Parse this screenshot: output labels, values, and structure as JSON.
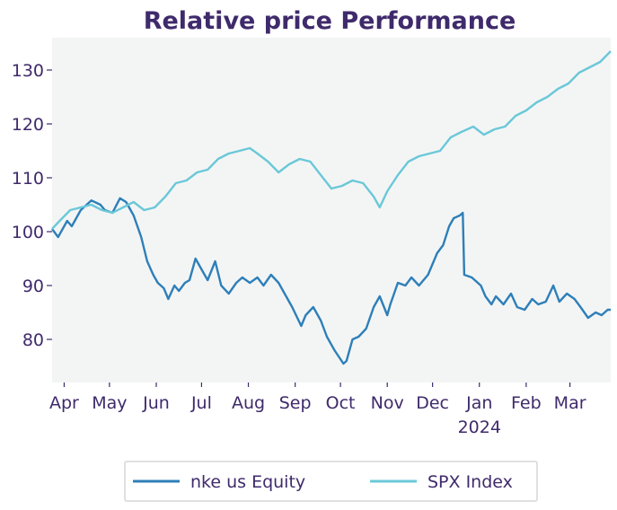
{
  "chart_data": {
    "type": "line",
    "title": "Relative price Performance",
    "xlabel": "",
    "ylabel": "",
    "x_range": [
      "2023-03-24",
      "2024-03-28"
    ],
    "ylim": [
      72,
      136
    ],
    "y_ticks": [
      80,
      90,
      100,
      110,
      120,
      130
    ],
    "x_ticks": [
      {
        "date": "2023-04-01",
        "label": "Apr"
      },
      {
        "date": "2023-05-01",
        "label": "May"
      },
      {
        "date": "2023-06-01",
        "label": "Jun"
      },
      {
        "date": "2023-07-01",
        "label": "Jul"
      },
      {
        "date": "2023-08-01",
        "label": "Aug"
      },
      {
        "date": "2023-09-01",
        "label": "Sep"
      },
      {
        "date": "2023-10-01",
        "label": "Oct"
      },
      {
        "date": "2023-11-01",
        "label": "Nov"
      },
      {
        "date": "2023-12-01",
        "label": "Dec"
      },
      {
        "date": "2024-01-01",
        "label": "Jan",
        "sublabel": "2024"
      },
      {
        "date": "2024-02-01",
        "label": "Feb"
      },
      {
        "date": "2024-03-01",
        "label": "Mar"
      }
    ],
    "grid": false,
    "legend_position": "bottom",
    "colors": {
      "background": "#f3f5f5",
      "text": "#3f2a6b"
    },
    "series": [
      {
        "name": "nke us Equity",
        "color": "#2e7fb8",
        "points": [
          [
            "2023-03-24",
            100.5
          ],
          [
            "2023-03-28",
            99.0
          ],
          [
            "2023-04-03",
            102.0
          ],
          [
            "2023-04-06",
            101.0
          ],
          [
            "2023-04-12",
            104.0
          ],
          [
            "2023-04-19",
            105.8
          ],
          [
            "2023-04-25",
            105.0
          ],
          [
            "2023-04-28",
            104.0
          ],
          [
            "2023-05-03",
            103.5
          ],
          [
            "2023-05-08",
            106.2
          ],
          [
            "2023-05-12",
            105.5
          ],
          [
            "2023-05-17",
            103.0
          ],
          [
            "2023-05-22",
            99.0
          ],
          [
            "2023-05-26",
            94.5
          ],
          [
            "2023-05-30",
            92.0
          ],
          [
            "2023-06-02",
            90.5
          ],
          [
            "2023-06-06",
            89.5
          ],
          [
            "2023-06-09",
            87.5
          ],
          [
            "2023-06-13",
            90.0
          ],
          [
            "2023-06-16",
            89.0
          ],
          [
            "2023-06-20",
            90.5
          ],
          [
            "2023-06-23",
            91.0
          ],
          [
            "2023-06-27",
            95.0
          ],
          [
            "2023-06-30",
            93.5
          ],
          [
            "2023-07-05",
            91.0
          ],
          [
            "2023-07-10",
            94.5
          ],
          [
            "2023-07-14",
            90.0
          ],
          [
            "2023-07-19",
            88.5
          ],
          [
            "2023-07-24",
            90.5
          ],
          [
            "2023-07-28",
            91.5
          ],
          [
            "2023-08-02",
            90.5
          ],
          [
            "2023-08-07",
            91.5
          ],
          [
            "2023-08-11",
            90.0
          ],
          [
            "2023-08-16",
            92.0
          ],
          [
            "2023-08-21",
            90.5
          ],
          [
            "2023-08-25",
            88.5
          ],
          [
            "2023-08-30",
            86.0
          ],
          [
            "2023-09-05",
            82.5
          ],
          [
            "2023-09-08",
            84.5
          ],
          [
            "2023-09-13",
            86.0
          ],
          [
            "2023-09-18",
            83.5
          ],
          [
            "2023-09-22",
            80.5
          ],
          [
            "2023-09-27",
            78.0
          ],
          [
            "2023-10-03",
            75.5
          ],
          [
            "2023-10-05",
            76.0
          ],
          [
            "2023-10-09",
            80.0
          ],
          [
            "2023-10-13",
            80.5
          ],
          [
            "2023-10-18",
            82.0
          ],
          [
            "2023-10-23",
            86.0
          ],
          [
            "2023-10-27",
            88.0
          ],
          [
            "2023-11-01",
            84.5
          ],
          [
            "2023-11-03",
            86.5
          ],
          [
            "2023-11-08",
            90.5
          ],
          [
            "2023-11-13",
            90.0
          ],
          [
            "2023-11-17",
            91.5
          ],
          [
            "2023-11-22",
            90.0
          ],
          [
            "2023-11-28",
            92.0
          ],
          [
            "2023-12-04",
            96.0
          ],
          [
            "2023-12-08",
            97.5
          ],
          [
            "2023-12-12",
            101.0
          ],
          [
            "2023-12-15",
            102.5
          ],
          [
            "2023-12-19",
            103.0
          ],
          [
            "2023-12-21",
            103.5
          ],
          [
            "2023-12-22",
            92.0
          ],
          [
            "2023-12-27",
            91.5
          ],
          [
            "2024-01-02",
            90.0
          ],
          [
            "2024-01-05",
            88.0
          ],
          [
            "2024-01-09",
            86.5
          ],
          [
            "2024-01-12",
            88.0
          ],
          [
            "2024-01-17",
            86.5
          ],
          [
            "2024-01-22",
            88.5
          ],
          [
            "2024-01-26",
            86.0
          ],
          [
            "2024-01-31",
            85.5
          ],
          [
            "2024-02-05",
            87.5
          ],
          [
            "2024-02-09",
            86.5
          ],
          [
            "2024-02-14",
            87.0
          ],
          [
            "2024-02-19",
            90.0
          ],
          [
            "2024-02-23",
            87.0
          ],
          [
            "2024-02-28",
            88.5
          ],
          [
            "2024-03-04",
            87.5
          ],
          [
            "2024-03-08",
            86.0
          ],
          [
            "2024-03-13",
            84.0
          ],
          [
            "2024-03-18",
            85.0
          ],
          [
            "2024-03-22",
            84.5
          ],
          [
            "2024-03-26",
            85.5
          ],
          [
            "2024-03-28",
            85.5
          ]
        ]
      },
      {
        "name": "SPX Index",
        "color": "#6bc8d8",
        "points": [
          [
            "2023-03-24",
            100.5
          ],
          [
            "2023-03-29",
            102.0
          ],
          [
            "2023-04-05",
            104.0
          ],
          [
            "2023-04-12",
            104.5
          ],
          [
            "2023-04-19",
            105.0
          ],
          [
            "2023-04-26",
            104.0
          ],
          [
            "2023-05-03",
            103.5
          ],
          [
            "2023-05-10",
            104.5
          ],
          [
            "2023-05-17",
            105.5
          ],
          [
            "2023-05-24",
            104.0
          ],
          [
            "2023-05-31",
            104.5
          ],
          [
            "2023-06-07",
            106.5
          ],
          [
            "2023-06-14",
            109.0
          ],
          [
            "2023-06-21",
            109.5
          ],
          [
            "2023-06-28",
            111.0
          ],
          [
            "2023-07-05",
            111.5
          ],
          [
            "2023-07-12",
            113.5
          ],
          [
            "2023-07-19",
            114.5
          ],
          [
            "2023-07-26",
            115.0
          ],
          [
            "2023-08-02",
            115.5
          ],
          [
            "2023-08-07",
            114.5
          ],
          [
            "2023-08-14",
            113.0
          ],
          [
            "2023-08-21",
            111.0
          ],
          [
            "2023-08-28",
            112.5
          ],
          [
            "2023-09-04",
            113.5
          ],
          [
            "2023-09-11",
            113.0
          ],
          [
            "2023-09-18",
            110.5
          ],
          [
            "2023-09-25",
            108.0
          ],
          [
            "2023-10-02",
            108.5
          ],
          [
            "2023-10-09",
            109.5
          ],
          [
            "2023-10-16",
            109.0
          ],
          [
            "2023-10-23",
            106.5
          ],
          [
            "2023-10-27",
            104.5
          ],
          [
            "2023-11-01",
            107.5
          ],
          [
            "2023-11-08",
            110.5
          ],
          [
            "2023-11-15",
            113.0
          ],
          [
            "2023-11-22",
            114.0
          ],
          [
            "2023-11-29",
            114.5
          ],
          [
            "2023-12-06",
            115.0
          ],
          [
            "2023-12-13",
            117.5
          ],
          [
            "2023-12-20",
            118.5
          ],
          [
            "2023-12-28",
            119.5
          ],
          [
            "2024-01-04",
            118.0
          ],
          [
            "2024-01-11",
            119.0
          ],
          [
            "2024-01-18",
            119.5
          ],
          [
            "2024-01-25",
            121.5
          ],
          [
            "2024-02-01",
            122.5
          ],
          [
            "2024-02-08",
            124.0
          ],
          [
            "2024-02-15",
            125.0
          ],
          [
            "2024-02-22",
            126.5
          ],
          [
            "2024-02-29",
            127.5
          ],
          [
            "2024-03-07",
            129.5
          ],
          [
            "2024-03-14",
            130.5
          ],
          [
            "2024-03-21",
            131.5
          ],
          [
            "2024-03-28",
            133.5
          ]
        ]
      }
    ]
  }
}
